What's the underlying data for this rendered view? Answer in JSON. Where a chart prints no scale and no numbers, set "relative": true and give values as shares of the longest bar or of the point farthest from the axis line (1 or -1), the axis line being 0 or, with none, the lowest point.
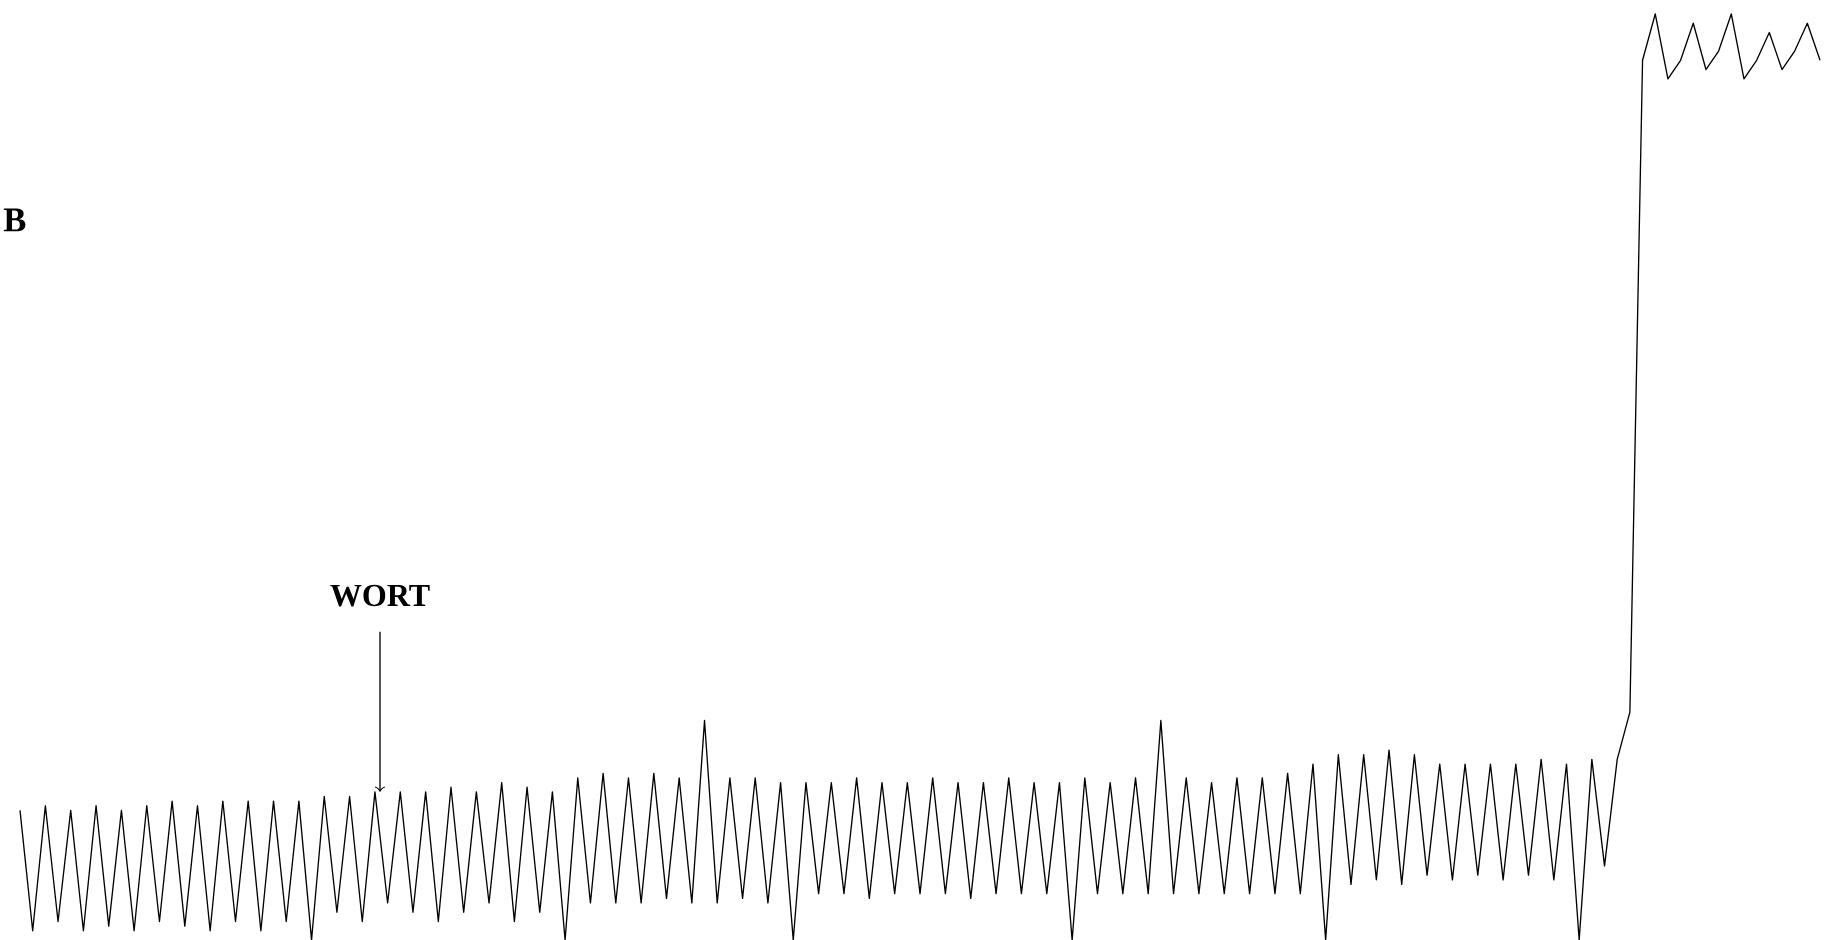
{
  "chart_data": {
    "type": "line",
    "relative": true,
    "annotations": [
      "B",
      {
        "text": "WORT",
        "y": 0.16
      }
    ],
    "categories": [
      null,
      null,
      null,
      null,
      null,
      null,
      null,
      null,
      null,
      null,
      null,
      null,
      null,
      null,
      null,
      null,
      null,
      null,
      null,
      null,
      null,
      null,
      null,
      null,
      null,
      null,
      null,
      null,
      null,
      null,
      null,
      null,
      null,
      null,
      null,
      null,
      null,
      null,
      null,
      null,
      null,
      null,
      null,
      null,
      null,
      null,
      null,
      null,
      null,
      null,
      null,
      null,
      null,
      null,
      null,
      null,
      null,
      null,
      null,
      null,
      null,
      null,
      null,
      null,
      null,
      null,
      null,
      null,
      null,
      null,
      null,
      null,
      null,
      null,
      null,
      null,
      null,
      null,
      null,
      null,
      null,
      null,
      null,
      null,
      null,
      null,
      null,
      null,
      null,
      null,
      null,
      null,
      null,
      null,
      null,
      null,
      null,
      null,
      null,
      null,
      null,
      null,
      null,
      null,
      null,
      null,
      null,
      null,
      null,
      null,
      null,
      null,
      null,
      null,
      null,
      null,
      null,
      null,
      null,
      null,
      null,
      null,
      null,
      null,
      null,
      null,
      null,
      null,
      null,
      null,
      null,
      null,
      null,
      null,
      null,
      null,
      null,
      null,
      null,
      null,
      null,
      null,
      null
    ],
    "series": [
      {
        "color": "#000000",
        "values": [
          0.14,
          0.01,
          0.145,
          0.02,
          0.14,
          0.01,
          0.145,
          0.015,
          0.14,
          0.01,
          0.145,
          0.02,
          0.15,
          0.015,
          0.145,
          0.01,
          0.15,
          0.02,
          0.15,
          0.01,
          0.15,
          0.02,
          0.15,
          0.0,
          0.155,
          0.03,
          0.155,
          0.02,
          0.16,
          0.04,
          0.16,
          0.03,
          0.16,
          0.02,
          0.165,
          0.03,
          0.16,
          0.04,
          0.17,
          0.02,
          0.165,
          0.03,
          0.16,
          0.0,
          0.175,
          0.04,
          0.18,
          0.04,
          0.175,
          0.04,
          0.18,
          0.045,
          0.175,
          0.04,
          0.237,
          0.04,
          0.175,
          0.045,
          0.175,
          0.04,
          0.17,
          0.0,
          0.17,
          0.05,
          0.17,
          0.05,
          0.175,
          0.045,
          0.17,
          0.05,
          0.17,
          0.05,
          0.175,
          0.05,
          0.17,
          0.045,
          0.17,
          0.05,
          0.175,
          0.05,
          0.17,
          0.05,
          0.17,
          0.0,
          0.175,
          0.05,
          0.17,
          0.05,
          0.175,
          0.05,
          0.237,
          0.05,
          0.175,
          0.05,
          0.17,
          0.05,
          0.175,
          0.05,
          0.175,
          0.05,
          0.18,
          0.05,
          0.19,
          0.0,
          0.2,
          0.06,
          0.2,
          0.065,
          0.205,
          0.06,
          0.2,
          0.07,
          0.19,
          0.065,
          0.19,
          0.07,
          0.19,
          0.065,
          0.19,
          0.07,
          0.195,
          0.065,
          0.19,
          0.0,
          0.195,
          0.08,
          0.195,
          0.246,
          0.95,
          1.0,
          0.93,
          0.95,
          0.99,
          0.94,
          0.96,
          1.0,
          0.93,
          0.95,
          0.98,
          0.94,
          0.96,
          0.99,
          0.95
        ]
      }
    ]
  }
}
